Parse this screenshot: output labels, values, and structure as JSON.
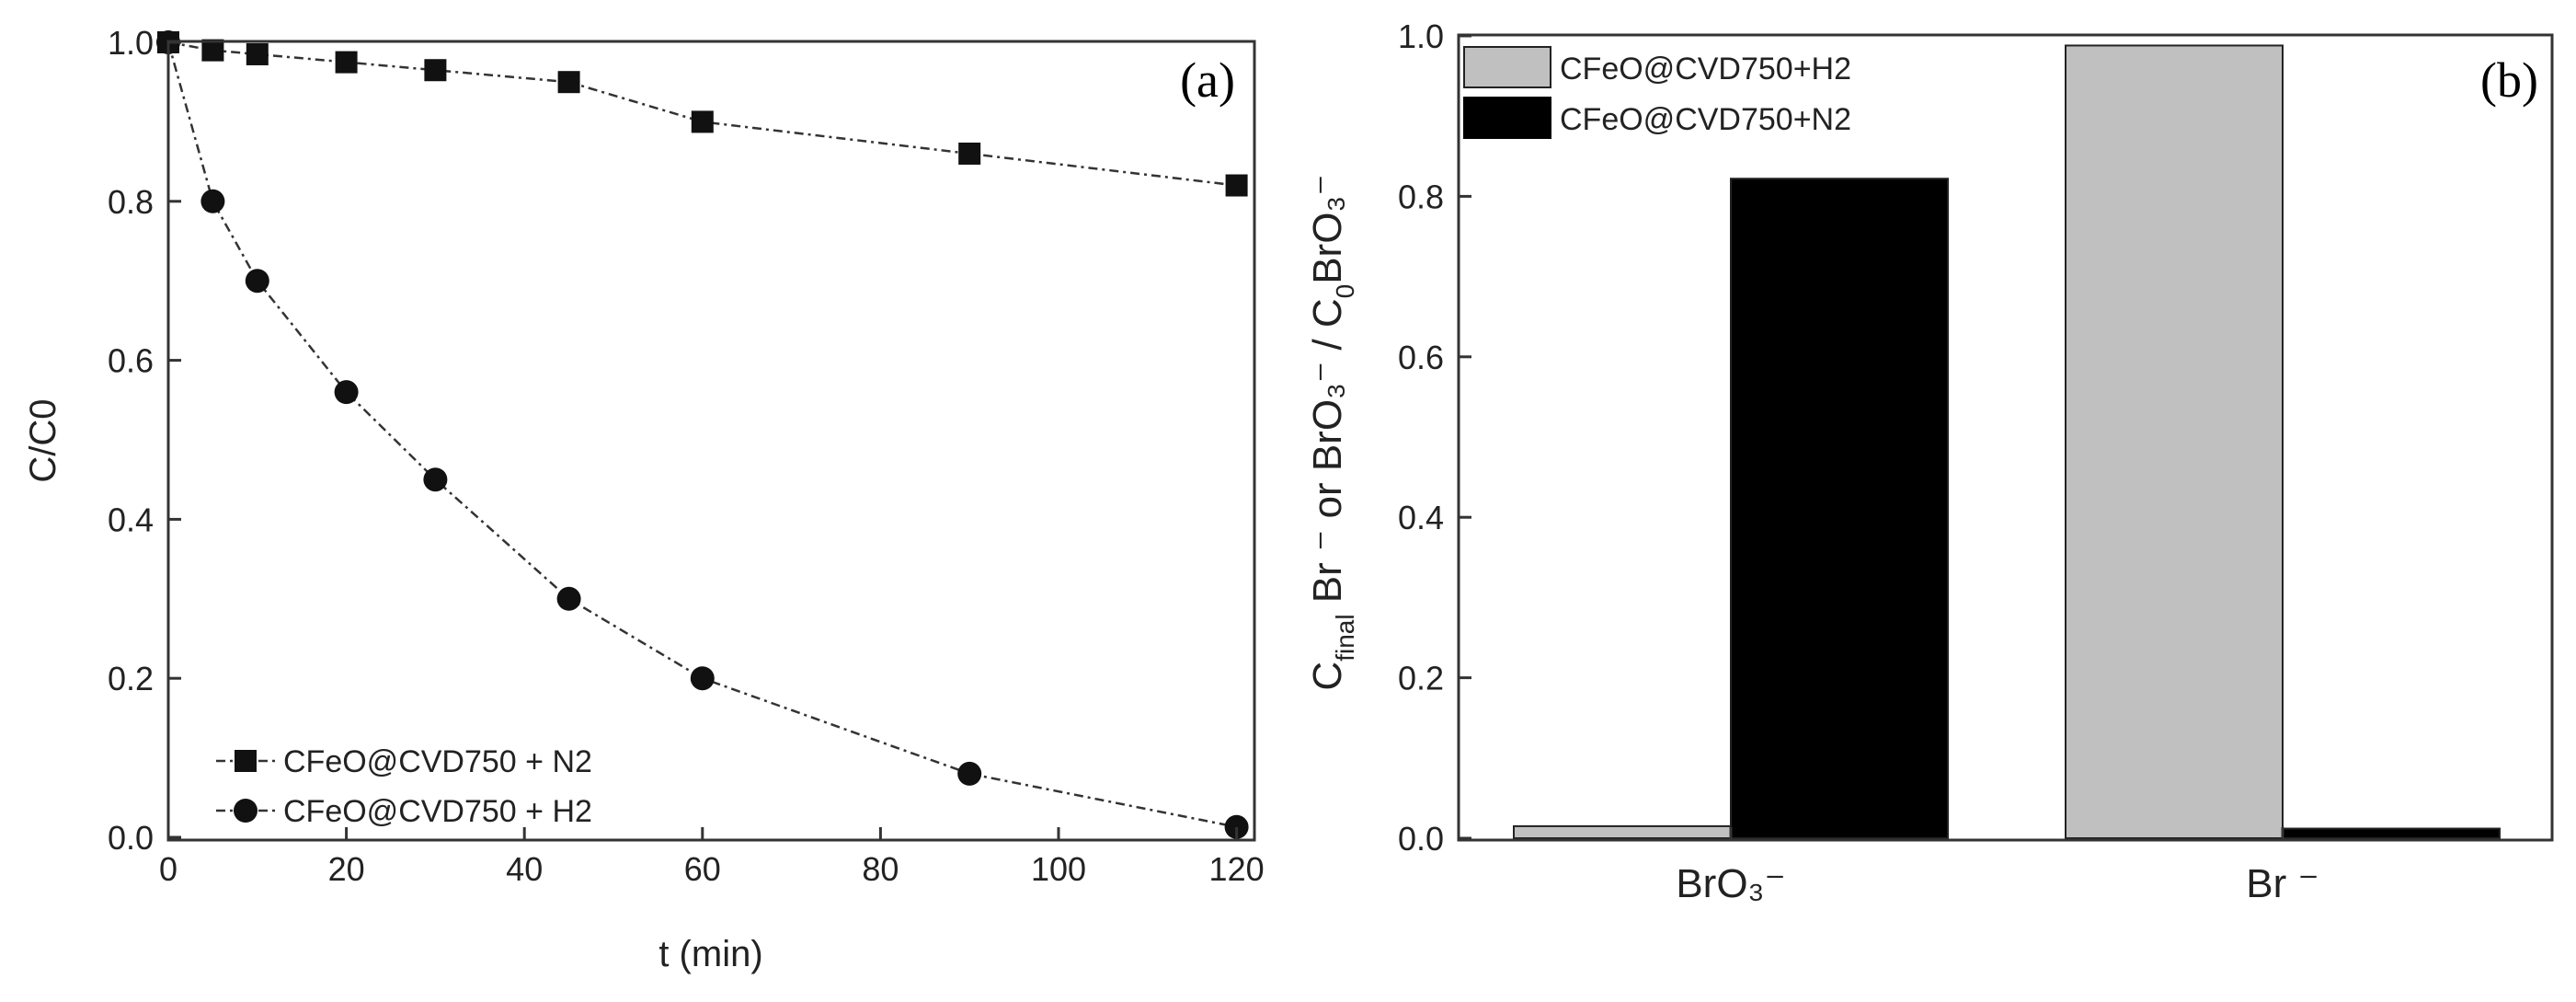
{
  "chart_data": [
    {
      "type": "line",
      "panel_label": "(a)",
      "xlabel": "t (min)",
      "ylabel": "C/C0",
      "xlim": [
        0,
        122
      ],
      "ylim": [
        0,
        1.05
      ],
      "xticks": [
        0,
        20,
        40,
        60,
        80,
        100,
        120
      ],
      "yticks": [
        0.0,
        0.2,
        0.4,
        0.6,
        0.8,
        1.0
      ],
      "ytick_labels": [
        "0.0",
        "0.2",
        "0.4",
        "0.6",
        "0.8",
        "1.0"
      ],
      "legend_position": "bottom-left",
      "series": [
        {
          "name": "CFeO@CVD750 + N2",
          "marker": "square",
          "x": [
            0,
            5,
            10,
            20,
            30,
            45,
            60,
            90,
            120
          ],
          "y": [
            1.0,
            0.99,
            0.985,
            0.975,
            0.965,
            0.95,
            0.9,
            0.86,
            0.82
          ]
        },
        {
          "name": "CFeO@CVD750 + H2",
          "marker": "circle",
          "x": [
            0,
            5,
            10,
            20,
            30,
            45,
            60,
            90,
            120
          ],
          "y": [
            1.0,
            0.8,
            0.7,
            0.56,
            0.45,
            0.3,
            0.2,
            0.08,
            0.013
          ]
        }
      ]
    },
    {
      "type": "bar",
      "panel_label": "(b)",
      "categories": [
        "BrO₃⁻",
        "Br ⁻"
      ],
      "ylabel_parts": {
        "c": "C",
        "final": "final",
        "mid": " Br ⁻ or BrO₃⁻ / C",
        "zero": "0",
        "end": "BrO₃⁻"
      },
      "ylim": [
        0,
        1.0
      ],
      "yticks": [
        0.0,
        0.2,
        0.4,
        0.6,
        0.8,
        1.0
      ],
      "ytick_labels": [
        "0.0",
        "0.2",
        "0.4",
        "0.6",
        "0.8",
        "1.0"
      ],
      "legend_position": "top-left",
      "series": [
        {
          "name": "CFeO@CVD750+H2",
          "color": "#c0c0c0",
          "values": [
            0.015,
            0.988
          ]
        },
        {
          "name": "CFeO@CVD750+N2",
          "color": "#000000",
          "values": [
            0.822,
            0.012
          ]
        }
      ]
    }
  ]
}
